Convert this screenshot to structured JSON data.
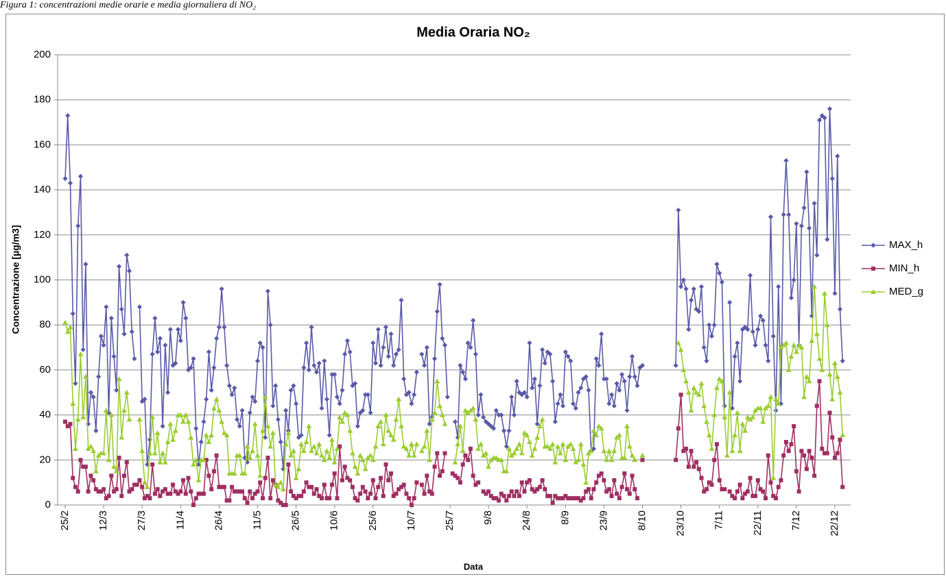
{
  "caption": "Figura 1: concentrazioni medie orarie e media giornaliera di NO₂",
  "chart_data": {
    "type": "line",
    "title": "Media Oraria NO₂",
    "x_label": "Data",
    "y_label": "Concentrazione [µg/m3]",
    "categories": [
      "25/2",
      null,
      null,
      null,
      null,
      null,
      null,
      null,
      null,
      null,
      null,
      null,
      null,
      null,
      null,
      "12/3",
      null,
      null,
      null,
      null,
      null,
      null,
      null,
      null,
      null,
      null,
      null,
      null,
      null,
      null,
      "27/3",
      null,
      null,
      null,
      null,
      null,
      null,
      null,
      null,
      null,
      null,
      null,
      null,
      null,
      null,
      "11/4",
      null,
      null,
      null,
      null,
      null,
      null,
      null,
      null,
      null,
      null,
      null,
      null,
      null,
      null,
      "26/4",
      null,
      null,
      null,
      null,
      null,
      null,
      null,
      null,
      null,
      null,
      null,
      null,
      null,
      null,
      "11/5",
      null,
      null,
      null,
      null,
      null,
      null,
      null,
      null,
      null,
      null,
      null,
      null,
      null,
      null,
      "26/5",
      null,
      null,
      null,
      null,
      null,
      null,
      null,
      null,
      null,
      null,
      null,
      null,
      null,
      null,
      "10/6",
      null,
      null,
      null,
      null,
      null,
      null,
      null,
      null,
      null,
      null,
      null,
      null,
      null,
      null,
      "25/6",
      null,
      null,
      null,
      null,
      null,
      null,
      null,
      null,
      null,
      null,
      null,
      null,
      null,
      null,
      "10/7",
      null,
      null,
      null,
      null,
      null,
      null,
      null,
      null,
      null,
      null,
      null,
      null,
      null,
      null,
      "25/7",
      null,
      null,
      null,
      null,
      null,
      null,
      null,
      null,
      null,
      null,
      null,
      null,
      null,
      null,
      "9/8",
      null,
      null,
      null,
      null,
      null,
      null,
      null,
      null,
      null,
      null,
      null,
      null,
      null,
      null,
      "24/8",
      null,
      null,
      null,
      null,
      null,
      null,
      null,
      null,
      null,
      null,
      null,
      null,
      null,
      null,
      "8/9",
      null,
      null,
      null,
      null,
      null,
      null,
      null,
      null,
      null,
      null,
      null,
      null,
      null,
      null,
      "23/9",
      null,
      null,
      null,
      null,
      null,
      null,
      null,
      null,
      null,
      null,
      null,
      null,
      null,
      null,
      "8/10",
      null,
      null,
      null,
      null,
      null,
      null,
      null,
      null,
      null,
      null,
      null,
      null,
      null,
      null,
      "23/10",
      null,
      null,
      null,
      null,
      null,
      null,
      null,
      null,
      null,
      null,
      null,
      null,
      null,
      null,
      "7/11",
      null,
      null,
      null,
      null,
      null,
      null,
      null,
      null,
      null,
      null,
      null,
      null,
      null,
      null,
      "22/11",
      null,
      null,
      null,
      null,
      null,
      null,
      null,
      null,
      null,
      null,
      null,
      null,
      null,
      null,
      "7/12",
      null,
      null,
      null,
      null,
      null,
      null,
      null,
      null,
      null,
      null,
      null,
      null,
      null,
      null,
      "22/12",
      null,
      null,
      null
    ],
    "series": [
      {
        "name": "MAX_h",
        "color": "#5a5aa8",
        "marker": "diamond",
        "values": [
          145,
          173,
          143,
          85,
          54,
          124,
          146,
          69,
          107,
          36,
          50,
          48,
          33,
          57,
          75,
          71,
          88,
          41,
          83,
          66,
          51,
          106,
          87,
          76,
          111,
          104,
          77,
          65,
          null,
          88,
          46,
          47,
          18,
          29,
          67,
          83,
          68,
          74,
          35,
          71,
          50,
          78,
          62,
          63,
          78,
          73,
          90,
          83,
          60,
          61,
          65,
          34,
          18,
          28,
          37,
          47,
          68,
          51,
          61,
          74,
          79,
          96,
          79,
          62,
          53,
          49,
          52,
          38,
          35,
          42,
          21,
          19,
          41,
          48,
          46,
          64,
          72,
          70,
          30,
          95,
          80,
          44,
          53,
          38,
          28,
          16,
          42,
          33,
          51,
          53,
          45,
          30,
          31,
          61,
          72,
          60,
          79,
          62,
          59,
          63,
          43,
          64,
          47,
          31,
          58,
          58,
          48,
          45,
          51,
          67,
          73,
          68,
          53,
          54,
          35,
          41,
          42,
          49,
          49,
          41,
          72,
          63,
          78,
          62,
          70,
          79,
          66,
          76,
          62,
          67,
          69,
          91,
          56,
          49,
          50,
          45,
          49,
          59,
          null,
          67,
          62,
          70,
          36,
          39,
          65,
          86,
          98,
          74,
          71,
          48,
          null,
          null,
          37,
          30,
          62,
          59,
          56,
          72,
          70,
          82,
          67,
          40,
          49,
          39,
          37,
          36,
          35,
          34,
          42,
          40,
          40,
          33,
          26,
          33,
          48,
          40,
          55,
          50,
          49,
          50,
          48,
          72,
          52,
          56,
          36,
          53,
          69,
          63,
          68,
          67,
          55,
          37,
          45,
          49,
          44,
          68,
          66,
          64,
          45,
          43,
          50,
          52,
          56,
          57,
          51,
          24,
          25,
          65,
          62,
          76,
          56,
          56,
          45,
          49,
          44,
          54,
          51,
          58,
          55,
          42,
          57,
          66,
          57,
          53,
          61,
          62,
          null,
          null,
          null,
          null,
          null,
          null,
          null,
          null,
          null,
          null,
          null,
          null,
          62,
          131,
          97,
          100,
          96,
          78,
          91,
          96,
          87,
          86,
          97,
          70,
          64,
          80,
          75,
          80,
          107,
          103,
          99,
          44,
          null,
          90,
          43,
          66,
          72,
          55,
          78,
          79,
          78,
          102,
          77,
          71,
          78,
          84,
          82,
          71,
          64,
          128,
          75,
          42,
          97,
          45,
          129,
          153,
          129,
          92,
          100,
          125,
          71,
          124,
          132,
          148,
          123,
          84,
          134,
          111,
          171,
          173,
          172,
          118,
          176,
          145,
          94,
          155,
          87,
          64
        ]
      },
      {
        "name": "MIN_h",
        "color": "#9e2f62",
        "marker": "square",
        "values": [
          37,
          35,
          36,
          12,
          8,
          6,
          20,
          17,
          17,
          6,
          13,
          11,
          7,
          6,
          6,
          7,
          3,
          4,
          13,
          6,
          7,
          21,
          4,
          13,
          19,
          6,
          7,
          9,
          9,
          11,
          8,
          3,
          4,
          3,
          18,
          5,
          7,
          4,
          6,
          7,
          5,
          5,
          9,
          6,
          5,
          6,
          11,
          5,
          12,
          6,
          0,
          3,
          5,
          5,
          5,
          20,
          13,
          7,
          15,
          22,
          8,
          8,
          8,
          2,
          2,
          8,
          6,
          6,
          6,
          6,
          3,
          1,
          6,
          3,
          5,
          6,
          10,
          3,
          12,
          21,
          3,
          11,
          9,
          2,
          1,
          0,
          0,
          18,
          6,
          4,
          3,
          4,
          4,
          6,
          10,
          8,
          8,
          5,
          7,
          4,
          3,
          9,
          3,
          3,
          9,
          14,
          3,
          26,
          11,
          17,
          12,
          11,
          8,
          3,
          2,
          5,
          8,
          6,
          3,
          5,
          11,
          3,
          8,
          12,
          4,
          18,
          11,
          14,
          4,
          5,
          7,
          8,
          9,
          5,
          3,
          0,
          3,
          10,
          null,
          9,
          5,
          13,
          6,
          5,
          17,
          23,
          13,
          15,
          23,
          null,
          null,
          14,
          13,
          12,
          10,
          18,
          22,
          20,
          25,
          13,
          9,
          10,
          null,
          6,
          5,
          6,
          4,
          3,
          3,
          2,
          5,
          4,
          2,
          4,
          6,
          4,
          6,
          4,
          10,
          6,
          10,
          11,
          7,
          6,
          7,
          8,
          11,
          7,
          4,
          4,
          1,
          4,
          3,
          3,
          3,
          4,
          3,
          3,
          3,
          3,
          3,
          2,
          3,
          6,
          7,
          3,
          7,
          10,
          13,
          14,
          11,
          6,
          7,
          4,
          11,
          5,
          3,
          8,
          14,
          7,
          5,
          13,
          7,
          3,
          null,
          20,
          null,
          null,
          null,
          null,
          null,
          null,
          null,
          null,
          null,
          null,
          null,
          null,
          20,
          34,
          49,
          24,
          25,
          17,
          24,
          17,
          19,
          16,
          12,
          6,
          7,
          10,
          9,
          20,
          27,
          11,
          7,
          7,
          null,
          6,
          4,
          3,
          6,
          9,
          3,
          5,
          6,
          12,
          4,
          4,
          11,
          7,
          6,
          3,
          22,
          10,
          4,
          3,
          8,
          11,
          22,
          28,
          24,
          27,
          35,
          15,
          6,
          24,
          22,
          16,
          24,
          21,
          13,
          44,
          55,
          25,
          23,
          23,
          41,
          30,
          21,
          23,
          29,
          8
        ]
      },
      {
        "name": "MED_g",
        "color": "#9acd32",
        "marker": "triangle",
        "values": [
          81,
          77,
          79,
          45,
          25,
          38,
          67,
          39,
          57,
          25,
          26,
          24,
          15,
          22,
          23,
          23,
          42,
          20,
          40,
          17,
          15,
          56,
          30,
          42,
          50,
          38,
          null,
          null,
          null,
          38,
          24,
          10,
          8,
          23,
          39,
          23,
          32,
          19,
          23,
          19,
          28,
          36,
          29,
          33,
          40,
          40,
          37,
          40,
          37,
          30,
          18,
          20,
          11,
          20,
          20,
          31,
          28,
          31,
          43,
          47,
          42,
          37,
          32,
          31,
          14,
          14,
          14,
          22,
          22,
          14,
          14,
          26,
          21,
          24,
          36,
          22,
          13,
          33,
          48,
          35,
          26,
          32,
          9,
          8,
          10,
          7,
          27,
          32,
          22,
          24,
          12,
          16,
          27,
          24,
          28,
          35,
          24,
          26,
          23,
          27,
          22,
          20,
          24,
          21,
          29,
          19,
          25,
          39,
          37,
          41,
          40,
          33,
          23,
          17,
          14,
          22,
          20,
          16,
          21,
          22,
          20,
          26,
          35,
          37,
          27,
          40,
          33,
          31,
          29,
          38,
          47,
          35,
          26,
          25,
          22,
          27,
          22,
          27,
          null,
          24,
          26,
          33,
          20,
          38,
          41,
          55,
          44,
          40,
          36,
          null,
          null,
          null,
          19,
          27,
          35,
          24,
          42,
          41,
          42,
          43,
          38,
          25,
          27,
          22,
          23,
          17,
          20,
          21,
          21,
          20,
          20,
          15,
          15,
          25,
          22,
          23,
          25,
          27,
          23,
          32,
          31,
          28,
          22,
          25,
          30,
          35,
          38,
          26,
          26,
          25,
          27,
          19,
          26,
          23,
          27,
          20,
          26,
          27,
          25,
          19,
          20,
          27,
          18,
          10,
          23,
          24,
          33,
          31,
          35,
          34,
          24,
          20,
          24,
          20,
          24,
          30,
          31,
          21,
          21,
          35,
          26,
          22,
          20,
          null,
          null,
          22,
          null,
          null,
          null,
          null,
          null,
          null,
          null,
          null,
          null,
          null,
          null,
          null,
          null,
          72,
          69,
          60,
          55,
          50,
          42,
          52,
          50,
          49,
          54,
          44,
          37,
          31,
          25,
          40,
          52,
          56,
          55,
          39,
          22,
          50,
          24,
          31,
          41,
          24,
          36,
          33,
          39,
          38,
          39,
          42,
          43,
          43,
          37,
          43,
          44,
          48,
          12,
          47,
          45,
          70,
          71,
          72,
          60,
          66,
          71,
          68,
          71,
          70,
          48,
          57,
          55,
          73,
          97,
          76,
          65,
          60,
          94,
          80,
          58,
          47,
          63,
          57,
          50,
          31
        ]
      }
    ],
    "ylim": [
      0,
      200
    ],
    "yticks": [
      0,
      20,
      40,
      60,
      80,
      100,
      120,
      140,
      160,
      180,
      200
    ],
    "grid": true,
    "legend": "right"
  }
}
